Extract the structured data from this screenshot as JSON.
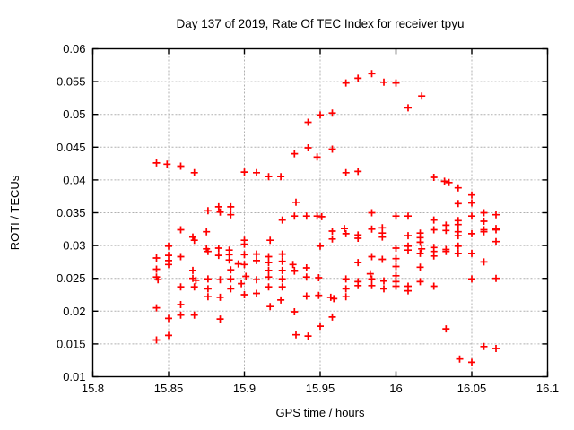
{
  "chart_data": {
    "type": "scatter",
    "title": "Day 137 of 2019, Rate Of TEC Index for receiver tpyu",
    "xlabel": "GPS time / hours",
    "ylabel": "ROTI / TECUs",
    "xlim": [
      15.8,
      16.1
    ],
    "ylim": [
      0.01,
      0.06
    ],
    "xticks": [
      15.8,
      15.85,
      15.9,
      15.95,
      16,
      16.05,
      16.1
    ],
    "xtick_labels": [
      "15.8",
      "15.85",
      "15.9",
      "15.95",
      "16",
      "16.05",
      "16.1"
    ],
    "yticks": [
      0.01,
      0.015,
      0.02,
      0.025,
      0.03,
      0.035,
      0.04,
      0.045,
      0.05,
      0.055,
      0.06
    ],
    "ytick_labels": [
      "0.01",
      "0.015",
      "0.02",
      "0.025",
      "0.03",
      "0.035",
      "0.04",
      "0.045",
      "0.05",
      "0.055",
      "0.06"
    ],
    "grid": true,
    "legend_position": "none",
    "marker": "plus",
    "marker_color": "#ff0000",
    "grid_color": "#b0b0b0",
    "axis_color": "#000000",
    "background_color": "#ffffff",
    "series": [
      {
        "name": "ROTI",
        "points": [
          [
            15.842,
            0.0426
          ],
          [
            15.849,
            0.0424
          ],
          [
            15.858,
            0.0421
          ],
          [
            15.867,
            0.0411
          ],
          [
            15.9,
            0.0412
          ],
          [
            15.908,
            0.0411
          ],
          [
            15.916,
            0.0405
          ],
          [
            15.924,
            0.0405
          ],
          [
            15.933,
            0.044
          ],
          [
            15.942,
            0.0449
          ],
          [
            15.942,
            0.0488
          ],
          [
            15.948,
            0.0435
          ],
          [
            15.95,
            0.0499
          ],
          [
            15.958,
            0.0502
          ],
          [
            15.958,
            0.0447
          ],
          [
            15.967,
            0.0548
          ],
          [
            15.975,
            0.0555
          ],
          [
            15.984,
            0.0562
          ],
          [
            15.992,
            0.0549
          ],
          [
            16.0,
            0.0548
          ],
          [
            16.008,
            0.051
          ],
          [
            16.017,
            0.0528
          ],
          [
            15.967,
            0.0411
          ],
          [
            15.975,
            0.0413
          ],
          [
            15.984,
            0.035
          ],
          [
            15.934,
            0.0366
          ],
          [
            16.025,
            0.0404
          ],
          [
            16.032,
            0.0398
          ],
          [
            16.035,
            0.0396
          ],
          [
            16.041,
            0.0388
          ],
          [
            16.05,
            0.0377
          ],
          [
            16.041,
            0.0364
          ],
          [
            16.05,
            0.0365
          ],
          [
            15.876,
            0.0353
          ],
          [
            15.883,
            0.0359
          ],
          [
            15.884,
            0.0351
          ],
          [
            15.891,
            0.0359
          ],
          [
            15.891,
            0.0347
          ],
          [
            15.858,
            0.0324
          ],
          [
            15.866,
            0.0313
          ],
          [
            15.867,
            0.0308
          ],
          [
            15.875,
            0.0321
          ],
          [
            15.85,
            0.0299
          ],
          [
            15.875,
            0.0295
          ],
          [
            15.876,
            0.0291
          ],
          [
            15.883,
            0.0296
          ],
          [
            15.883,
            0.0285
          ],
          [
            15.89,
            0.0293
          ],
          [
            15.89,
            0.0286
          ],
          [
            15.89,
            0.0278
          ],
          [
            15.842,
            0.0281
          ],
          [
            15.85,
            0.0285
          ],
          [
            15.85,
            0.0277
          ],
          [
            15.858,
            0.0283
          ],
          [
            15.85,
            0.0271
          ],
          [
            15.842,
            0.0264
          ],
          [
            15.866,
            0.0262
          ],
          [
            15.891,
            0.0263
          ],
          [
            15.925,
            0.0339
          ],
          [
            15.933,
            0.0345
          ],
          [
            15.941,
            0.0345
          ],
          [
            15.948,
            0.0345
          ],
          [
            15.951,
            0.0344
          ],
          [
            15.958,
            0.0322
          ],
          [
            15.958,
            0.031
          ],
          [
            15.966,
            0.0326
          ],
          [
            15.967,
            0.0318
          ],
          [
            15.975,
            0.0316
          ],
          [
            15.975,
            0.0311
          ],
          [
            15.984,
            0.0325
          ],
          [
            15.991,
            0.0327
          ],
          [
            15.991,
            0.0319
          ],
          [
            15.991,
            0.0313
          ],
          [
            15.9,
            0.0308
          ],
          [
            15.9,
            0.0302
          ],
          [
            15.917,
            0.0308
          ],
          [
            15.9,
            0.0286
          ],
          [
            15.9,
            0.0271
          ],
          [
            15.896,
            0.0272
          ],
          [
            15.908,
            0.0287
          ],
          [
            15.908,
            0.0277
          ],
          [
            15.916,
            0.0283
          ],
          [
            15.916,
            0.0274
          ],
          [
            15.925,
            0.0287
          ],
          [
            15.925,
            0.0276
          ],
          [
            15.932,
            0.0271
          ],
          [
            15.933,
            0.0262
          ],
          [
            15.941,
            0.0266
          ],
          [
            15.95,
            0.0299
          ],
          [
            15.975,
            0.0274
          ],
          [
            15.984,
            0.0283
          ],
          [
            15.991,
            0.0279
          ],
          [
            16.0,
            0.0345
          ],
          [
            16.008,
            0.0345
          ],
          [
            16.0,
            0.0296
          ],
          [
            16.0,
            0.028
          ],
          [
            16.0,
            0.0268
          ],
          [
            16.0,
            0.0254
          ],
          [
            16.0,
            0.0245
          ],
          [
            16.0,
            0.0238
          ],
          [
            16.008,
            0.0315
          ],
          [
            16.008,
            0.0299
          ],
          [
            16.008,
            0.0293
          ],
          [
            16.05,
            0.0345
          ],
          [
            16.058,
            0.035
          ],
          [
            16.066,
            0.0347
          ],
          [
            16.025,
            0.0339
          ],
          [
            16.041,
            0.0338
          ],
          [
            16.041,
            0.0332
          ],
          [
            16.025,
            0.0324
          ],
          [
            16.033,
            0.0331
          ],
          [
            16.033,
            0.0323
          ],
          [
            16.041,
            0.0321
          ],
          [
            16.041,
            0.0315
          ],
          [
            16.05,
            0.0318
          ],
          [
            16.058,
            0.0337
          ],
          [
            16.058,
            0.0324
          ],
          [
            16.058,
            0.0321
          ],
          [
            16.066,
            0.0326
          ],
          [
            16.066,
            0.0324
          ],
          [
            16.016,
            0.0319
          ],
          [
            16.016,
            0.0312
          ],
          [
            16.016,
            0.0305
          ],
          [
            16.017,
            0.0295
          ],
          [
            16.016,
            0.0288
          ],
          [
            16.016,
            0.0267
          ],
          [
            16.016,
            0.0245
          ],
          [
            16.066,
            0.0306
          ],
          [
            16.025,
            0.0297
          ],
          [
            16.025,
            0.0291
          ],
          [
            16.025,
            0.0284
          ],
          [
            16.033,
            0.0294
          ],
          [
            16.033,
            0.0291
          ],
          [
            16.041,
            0.0299
          ],
          [
            16.041,
            0.0288
          ],
          [
            16.05,
            0.0288
          ],
          [
            16.058,
            0.0275
          ],
          [
            16.008,
            0.0238
          ],
          [
            16.008,
            0.0231
          ],
          [
            16.025,
            0.0238
          ],
          [
            16.05,
            0.0249
          ],
          [
            16.066,
            0.025
          ],
          [
            15.842,
            0.0252
          ],
          [
            15.843,
            0.0248
          ],
          [
            15.866,
            0.025
          ],
          [
            15.868,
            0.0247
          ],
          [
            15.858,
            0.0237
          ],
          [
            15.867,
            0.0237
          ],
          [
            15.876,
            0.0249
          ],
          [
            15.876,
            0.0234
          ],
          [
            15.876,
            0.0222
          ],
          [
            15.884,
            0.0248
          ],
          [
            15.884,
            0.0221
          ],
          [
            15.891,
            0.0249
          ],
          [
            15.891,
            0.0234
          ],
          [
            15.898,
            0.0242
          ],
          [
            15.901,
            0.0253
          ],
          [
            15.9,
            0.0225
          ],
          [
            15.941,
            0.0252
          ],
          [
            15.908,
            0.0248
          ],
          [
            15.908,
            0.0227
          ],
          [
            15.916,
            0.0262
          ],
          [
            15.916,
            0.0252
          ],
          [
            15.916,
            0.0237
          ],
          [
            15.917,
            0.0207
          ],
          [
            15.925,
            0.0262
          ],
          [
            15.925,
            0.0249
          ],
          [
            15.925,
            0.0237
          ],
          [
            15.924,
            0.0217
          ],
          [
            15.933,
            0.0261
          ],
          [
            15.933,
            0.0199
          ],
          [
            15.934,
            0.0164
          ],
          [
            15.941,
            0.0223
          ],
          [
            15.942,
            0.0162
          ],
          [
            15.949,
            0.0251
          ],
          [
            15.949,
            0.0224
          ],
          [
            15.95,
            0.0177
          ],
          [
            15.957,
            0.0221
          ],
          [
            15.959,
            0.0219
          ],
          [
            15.958,
            0.0191
          ],
          [
            15.967,
            0.0249
          ],
          [
            15.967,
            0.0234
          ],
          [
            15.967,
            0.0222
          ],
          [
            15.975,
            0.0245
          ],
          [
            15.975,
            0.0239
          ],
          [
            15.983,
            0.0257
          ],
          [
            15.984,
            0.0249
          ],
          [
            15.984,
            0.0239
          ],
          [
            15.992,
            0.0246
          ],
          [
            15.992,
            0.0234
          ],
          [
            15.842,
            0.0205
          ],
          [
            15.858,
            0.021
          ],
          [
            15.85,
            0.0189
          ],
          [
            15.858,
            0.0194
          ],
          [
            15.867,
            0.0194
          ],
          [
            15.884,
            0.0188
          ],
          [
            15.85,
            0.0163
          ],
          [
            15.842,
            0.0156
          ],
          [
            16.033,
            0.0173
          ],
          [
            16.058,
            0.0146
          ],
          [
            16.066,
            0.0143
          ],
          [
            16.042,
            0.0127
          ],
          [
            16.05,
            0.0122
          ]
        ]
      }
    ]
  }
}
